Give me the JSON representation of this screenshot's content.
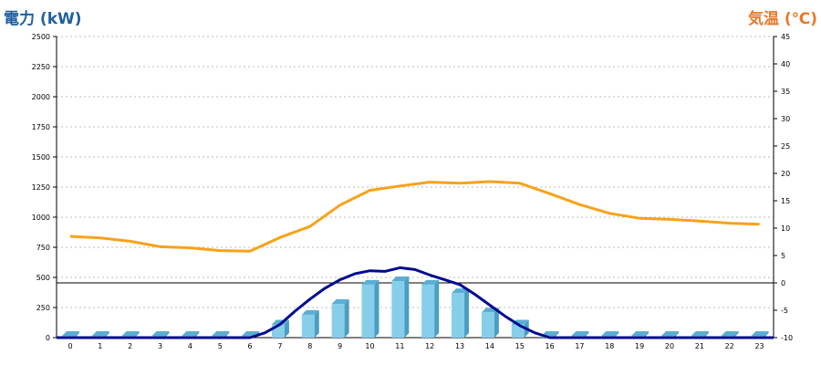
{
  "chart_data": {
    "type": "bar",
    "title": "",
    "ylabel": "電力 (kW)",
    "y2label": "気温 (℃)",
    "xlabel": "",
    "categories": [
      "0",
      "1",
      "2",
      "3",
      "4",
      "5",
      "6",
      "7",
      "8",
      "9",
      "10",
      "11",
      "12",
      "13",
      "14",
      "15",
      "16",
      "17",
      "18",
      "19",
      "20",
      "21",
      "22",
      "23"
    ],
    "ylim": [
      0,
      2500
    ],
    "y2lim": [
      -10,
      45
    ],
    "yticks": [
      "0",
      "250",
      "500",
      "750",
      "1000",
      "1250",
      "1500",
      "1750",
      "2000",
      "2250",
      "2500"
    ],
    "y2ticks": [
      "-10",
      "-5",
      "0",
      "5",
      "10",
      "15",
      "20",
      "25",
      "30",
      "35",
      "40",
      "45"
    ],
    "grid": true,
    "series": [
      {
        "type": "bar",
        "axis": "left",
        "values": [
          0,
          0,
          0,
          0,
          0,
          0,
          0,
          110,
          190,
          280,
          440,
          470,
          440,
          370,
          210,
          110,
          0,
          0,
          0,
          0,
          0,
          0,
          0,
          0
        ]
      },
      {
        "type": "line",
        "axis": "left",
        "x": [
          0,
          1,
          2,
          3,
          4,
          5,
          6,
          6.5,
          7,
          7.5,
          8,
          8.5,
          9,
          9.5,
          10,
          10.5,
          11,
          11.5,
          12,
          12.5,
          13,
          13.5,
          14,
          14.5,
          15,
          15.5,
          16,
          17,
          18,
          19,
          20,
          21,
          22,
          23
        ],
        "values": [
          0,
          0,
          0,
          0,
          0,
          0,
          0,
          40,
          110,
          220,
          320,
          410,
          480,
          530,
          555,
          550,
          580,
          565,
          520,
          480,
          440,
          360,
          270,
          180,
          100,
          40,
          0,
          0,
          0,
          0,
          0,
          0,
          0,
          0
        ]
      },
      {
        "type": "line",
        "axis": "right",
        "values": [
          8.5,
          8.2,
          7.6,
          6.6,
          6.4,
          5.9,
          5.8,
          8.3,
          10.3,
          14.2,
          16.9,
          17.7,
          18.4,
          18.2,
          18.5,
          18.2,
          16.3,
          14.3,
          12.7,
          11.8,
          11.6,
          11.3,
          10.9,
          10.7
        ]
      }
    ],
    "zero_line_right_axis": 0
  },
  "colors": {
    "bar": "#87CEEB",
    "bar_side": "#4a9ec2",
    "bar_top": "#5aaed3",
    "power_line": "#000a8f",
    "temp_line": "#f7a21b",
    "grid": "#bbbbbb",
    "left_title": "#1f5f9f",
    "right_title": "#e8792b"
  }
}
